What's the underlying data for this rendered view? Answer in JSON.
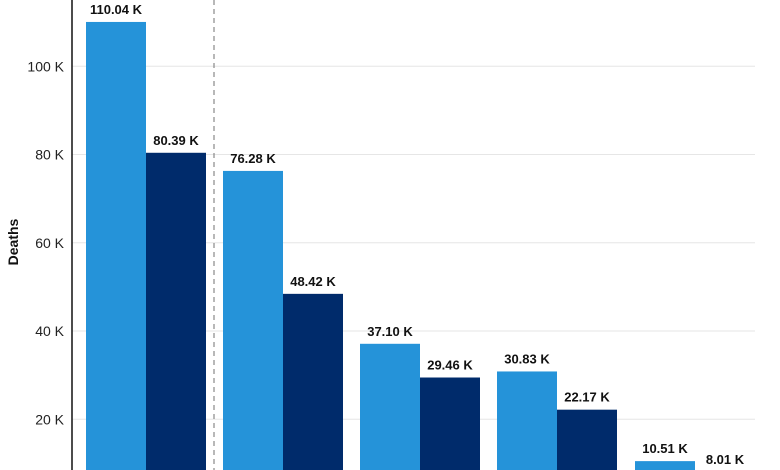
{
  "chart_data": {
    "type": "bar",
    "title": "",
    "xlabel": "",
    "ylabel": "Deaths",
    "ylim": [
      0,
      110000
    ],
    "y_ticks": [
      {
        "value": 20000,
        "label": "20 K"
      },
      {
        "value": 40000,
        "label": "40 K"
      },
      {
        "value": 60000,
        "label": "60 K"
      },
      {
        "value": 80000,
        "label": "80 K"
      },
      {
        "value": 100000,
        "label": "100 K"
      }
    ],
    "grid": true,
    "series": [
      {
        "color": "#2593d9",
        "values": [
          110040,
          76280,
          37100,
          30830,
          10510
        ],
        "labels": [
          "110.04 K",
          "76.28 K",
          "37.10 K",
          "30.83 K",
          "10.51 K"
        ]
      },
      {
        "color": "#002b6b",
        "values": [
          80390,
          48420,
          29460,
          22170,
          8010
        ],
        "labels": [
          "80.39 K",
          "48.42 K",
          "29.46 K",
          "22.17 K",
          "8.01 K"
        ]
      }
    ]
  }
}
